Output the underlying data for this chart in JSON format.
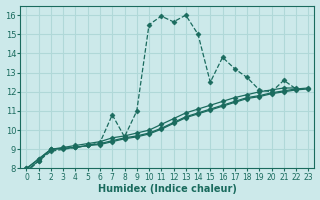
{
  "xlabel": "Humidex (Indice chaleur)",
  "bg_color": "#cce9ea",
  "grid_color": "#b0d8d8",
  "line_color": "#1a6b5e",
  "xlim": [
    -0.5,
    23.5
  ],
  "ylim": [
    8,
    16.5
  ],
  "xticks": [
    0,
    1,
    2,
    3,
    4,
    5,
    6,
    7,
    8,
    9,
    10,
    11,
    12,
    13,
    14,
    15,
    16,
    17,
    18,
    19,
    20,
    21,
    22,
    23
  ],
  "yticks": [
    8,
    9,
    10,
    11,
    12,
    13,
    14,
    15,
    16
  ],
  "series": [
    {
      "x": [
        0,
        1,
        2,
        3,
        4,
        5,
        6,
        7,
        8,
        9,
        10,
        11,
        12,
        13,
        14,
        15,
        16,
        17,
        18,
        19,
        20,
        21,
        22
      ],
      "y": [
        8.0,
        8.5,
        9.0,
        9.1,
        9.2,
        9.3,
        9.4,
        9.6,
        9.7,
        9.85,
        10.0,
        10.3,
        10.6,
        10.9,
        11.1,
        11.3,
        11.5,
        11.7,
        11.85,
        12.0,
        12.1,
        12.2,
        12.2
      ],
      "linestyle": "-",
      "linewidth": 0.9,
      "marker": "D",
      "markersize": 2.5
    },
    {
      "x": [
        0,
        1,
        2,
        3,
        4,
        5,
        6,
        7,
        8,
        9,
        10,
        11,
        12,
        13,
        14,
        15,
        16,
        17,
        18,
        19,
        20,
        21,
        22,
        23
      ],
      "y": [
        8.0,
        8.5,
        9.0,
        9.05,
        9.1,
        9.2,
        9.3,
        9.45,
        9.6,
        9.7,
        9.85,
        10.1,
        10.4,
        10.7,
        10.9,
        11.1,
        11.3,
        11.5,
        11.7,
        11.8,
        11.95,
        12.05,
        12.15,
        12.2
      ],
      "linestyle": "-",
      "linewidth": 0.9,
      "marker": "D",
      "markersize": 2.5
    },
    {
      "x": [
        0,
        1,
        2,
        3,
        4,
        5,
        6,
        7,
        8,
        9,
        10,
        11,
        12,
        13,
        14,
        15,
        16,
        17,
        18,
        19,
        20,
        21,
        22,
        23
      ],
      "y": [
        7.9,
        8.4,
        9.0,
        9.05,
        9.1,
        9.2,
        9.25,
        9.4,
        9.55,
        9.65,
        9.8,
        10.05,
        10.35,
        10.65,
        10.85,
        11.05,
        11.25,
        11.45,
        11.65,
        11.75,
        11.9,
        12.0,
        12.1,
        12.15
      ],
      "linestyle": "-",
      "linewidth": 0.9,
      "marker": "D",
      "markersize": 2.5
    },
    {
      "x": [
        0,
        1,
        2,
        3,
        4,
        5,
        6,
        7,
        8,
        9,
        10,
        11,
        12,
        13,
        14,
        15,
        16,
        17,
        18,
        19,
        20,
        21,
        22
      ],
      "y": [
        7.8,
        8.4,
        8.9,
        9.0,
        9.1,
        9.2,
        9.35,
        10.8,
        9.65,
        11.0,
        15.5,
        15.95,
        15.65,
        16.0,
        15.0,
        12.5,
        13.8,
        13.2,
        12.75,
        12.1,
        12.0,
        12.6,
        12.15
      ],
      "linestyle": "--",
      "linewidth": 0.9,
      "marker": "D",
      "markersize": 2.5
    }
  ]
}
